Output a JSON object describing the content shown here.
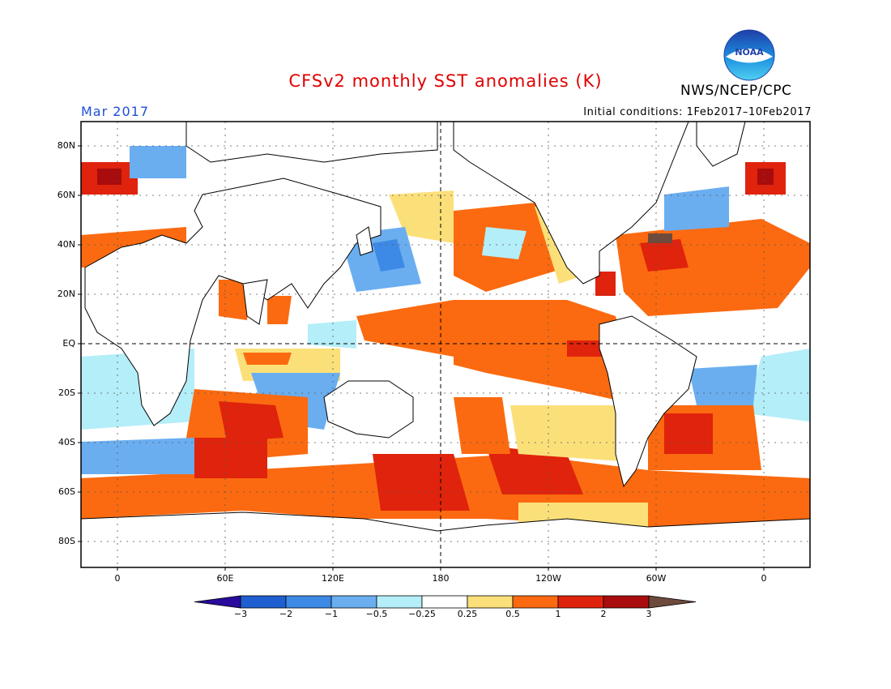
{
  "title": "CFSv2 monthly SST anomalies (K)",
  "agency": "NWS/NCEP/CPC",
  "logo_text": "NOAA",
  "month": "Mar 2017",
  "initial_conditions": "Initial conditions: 1Feb2017–10Feb2017",
  "y_axis_labels": [
    "80N",
    "60N",
    "40N",
    "20N",
    "EQ",
    "20S",
    "40S",
    "60S",
    "80S"
  ],
  "x_axis_labels": [
    "0",
    "60E",
    "120E",
    "180",
    "120W",
    "60W",
    "0"
  ],
  "colorbar": {
    "labels": [
      "−3",
      "−2",
      "−1",
      "−0.5",
      "−0.25",
      "0.25",
      "0.5",
      "1",
      "2",
      "3"
    ],
    "colors": [
      "#2a0a9c",
      "#1f5fd0",
      "#3d8ae6",
      "#6aaef0",
      "#b4eef8",
      "#ffffff",
      "#fbe07a",
      "#fb6a10",
      "#e0230c",
      "#a80c0c",
      "#6d4a3c"
    ]
  },
  "colors": {
    "title": "#e00000",
    "month": "#1f4fd6",
    "land": "#ffffff",
    "coast": "#000000"
  }
}
